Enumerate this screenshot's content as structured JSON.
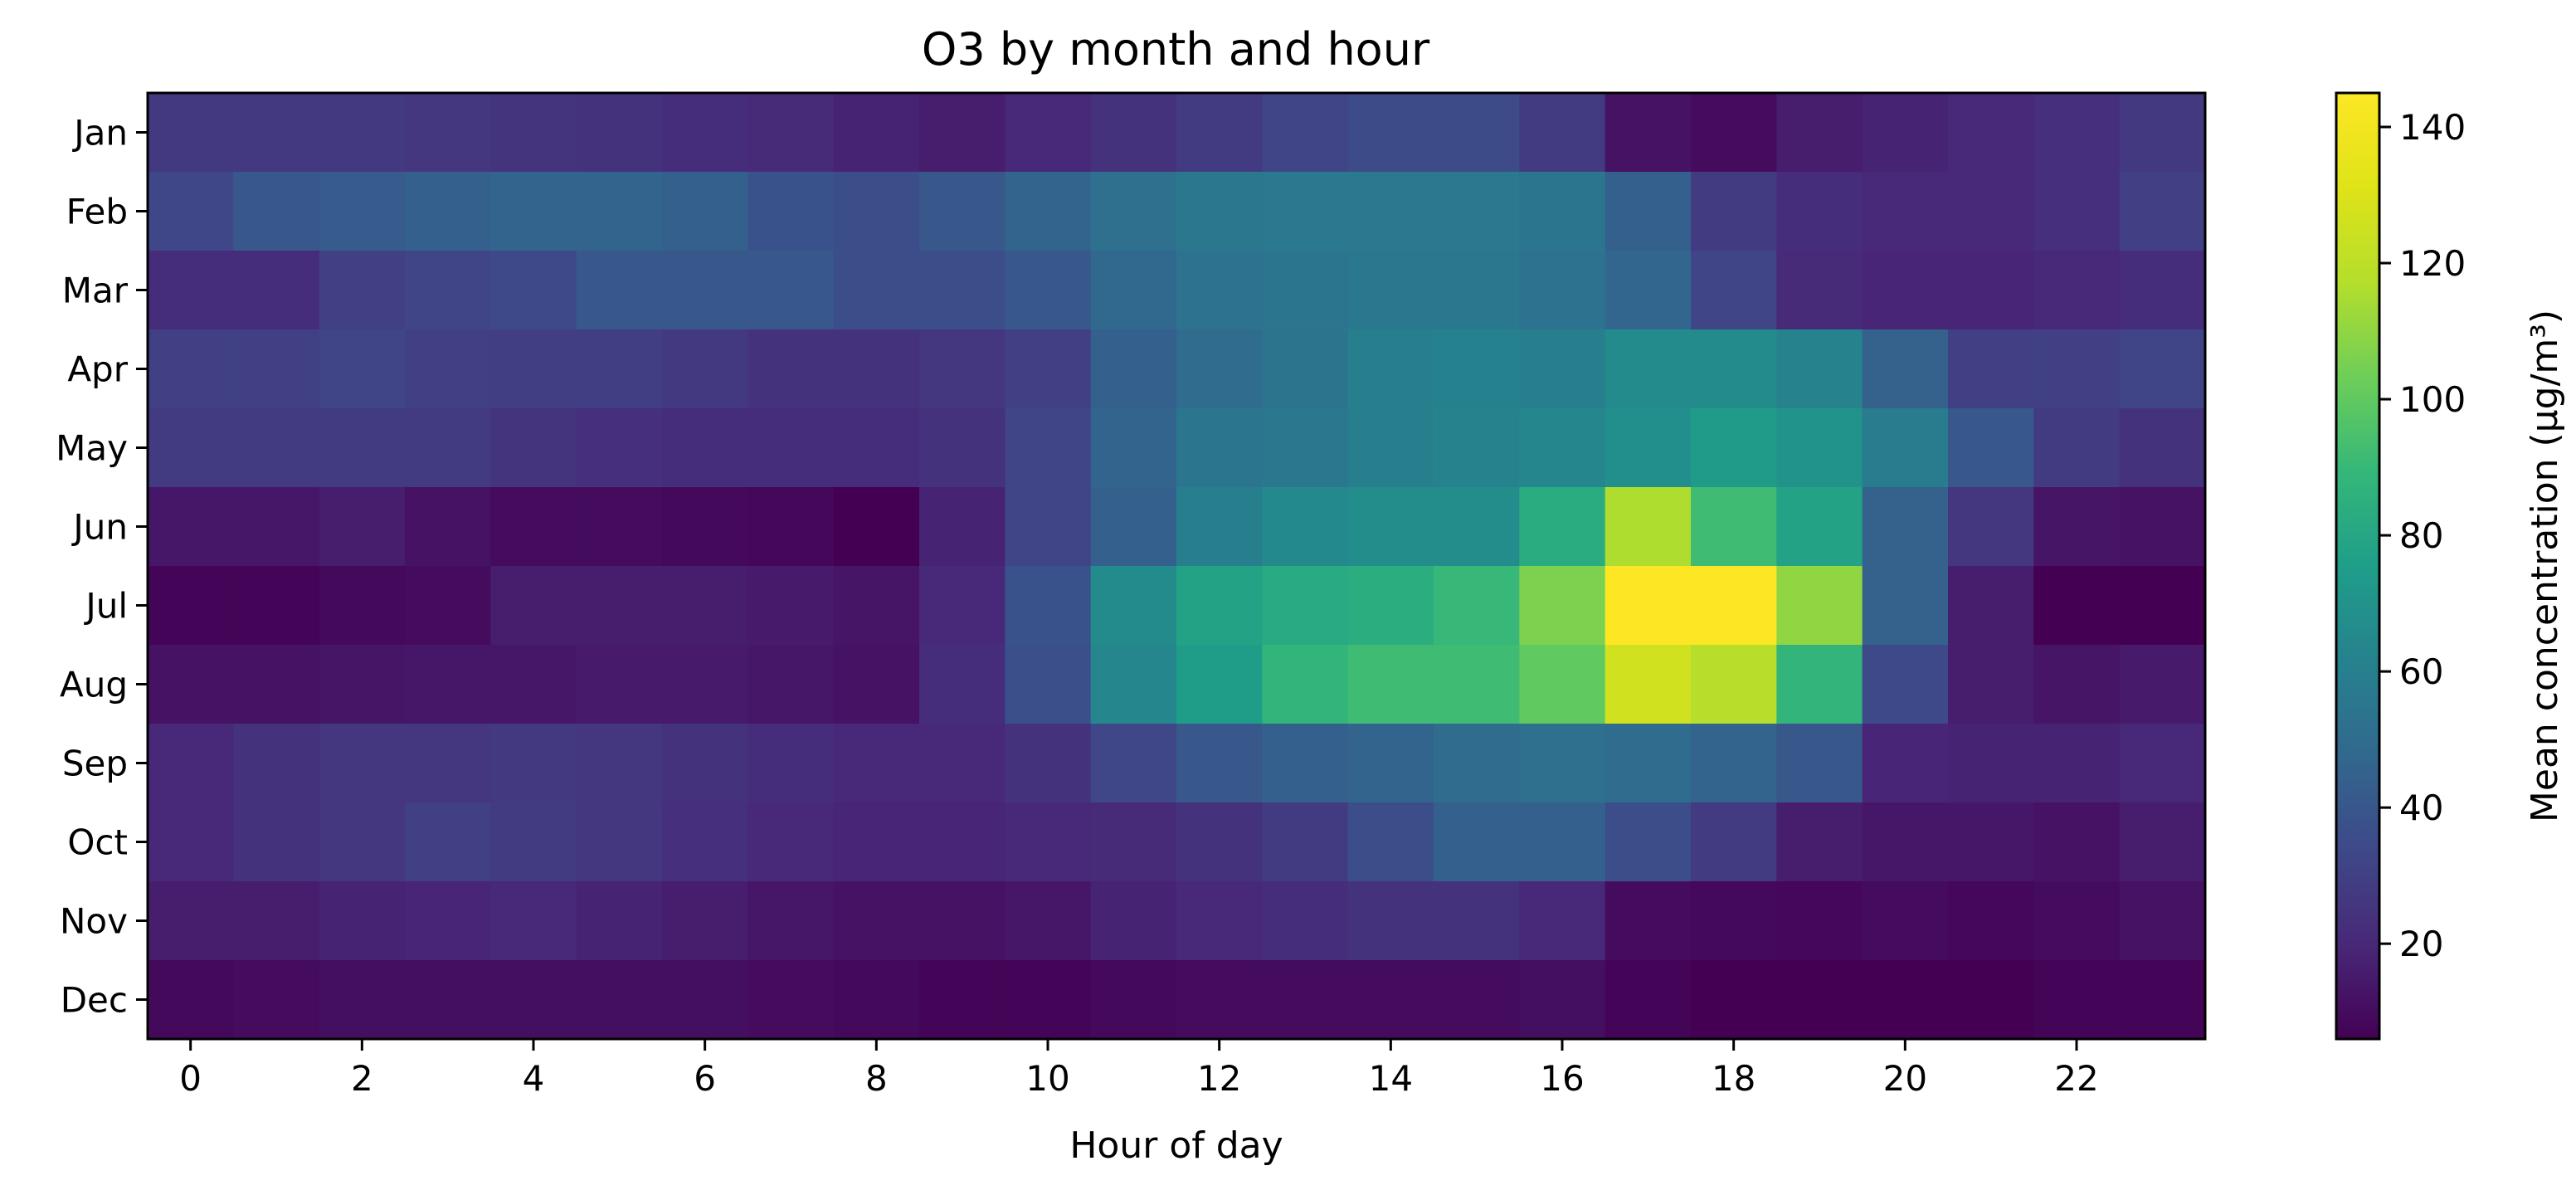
{
  "chart_data": {
    "type": "heatmap",
    "title": "O3 by month and hour",
    "xlabel": "Hour of day",
    "ylabel": "",
    "colorbar_label": "Mean concentration (µg/m³)",
    "colormap": "viridis",
    "x_categories": [
      0,
      1,
      2,
      3,
      4,
      5,
      6,
      7,
      8,
      9,
      10,
      11,
      12,
      13,
      14,
      15,
      16,
      17,
      18,
      19,
      20,
      21,
      22,
      23
    ],
    "x_tick_labels": [
      "0",
      "2",
      "4",
      "6",
      "8",
      "10",
      "12",
      "14",
      "16",
      "18",
      "20",
      "22"
    ],
    "y_categories": [
      "Jan",
      "Feb",
      "Mar",
      "Apr",
      "May",
      "Jun",
      "Jul",
      "Aug",
      "Sep",
      "Oct",
      "Nov",
      "Dec"
    ],
    "vmin": 6,
    "vmax": 145,
    "colorbar_ticks": [
      "20",
      "40",
      "60",
      "80",
      "100",
      "120",
      "140"
    ],
    "values": [
      [
        27,
        27,
        27,
        26,
        25,
        24,
        22,
        21,
        18,
        16,
        20,
        24,
        28,
        32,
        35,
        35,
        28,
        12,
        10,
        16,
        18,
        20,
        23,
        27
      ],
      [
        33,
        40,
        42,
        44,
        46,
        46,
        44,
        38,
        36,
        40,
        46,
        52,
        56,
        57,
        57,
        57,
        55,
        44,
        28,
        22,
        20,
        20,
        23,
        30
      ],
      [
        22,
        22,
        30,
        32,
        34,
        40,
        40,
        40,
        36,
        36,
        40,
        48,
        53,
        55,
        56,
        56,
        53,
        47,
        32,
        21,
        19,
        19,
        20,
        22
      ],
      [
        30,
        30,
        32,
        30,
        29,
        29,
        27,
        24,
        24,
        26,
        30,
        44,
        50,
        54,
        60,
        61,
        60,
        66,
        66,
        62,
        45,
        30,
        30,
        32
      ],
      [
        28,
        28,
        28,
        28,
        25,
        23,
        22,
        22,
        22,
        24,
        32,
        46,
        55,
        56,
        60,
        62,
        64,
        68,
        74,
        70,
        58,
        40,
        28,
        24
      ],
      [
        14,
        14,
        16,
        12,
        10,
        10,
        9,
        8,
        6,
        18,
        32,
        44,
        60,
        65,
        67,
        67,
        83,
        116,
        92,
        78,
        45,
        26,
        13,
        12
      ],
      [
        7,
        7,
        9,
        10,
        16,
        16,
        16,
        15,
        13,
        20,
        38,
        66,
        78,
        82,
        84,
        90,
        106,
        145,
        145,
        110,
        45,
        16,
        5,
        5
      ],
      [
        12,
        12,
        13,
        14,
        14,
        15,
        15,
        14,
        12,
        22,
        37,
        64,
        75,
        88,
        92,
        92,
        100,
        126,
        118,
        88,
        34,
        16,
        13,
        15
      ],
      [
        20,
        24,
        26,
        26,
        27,
        26,
        24,
        22,
        20,
        20,
        24,
        33,
        40,
        44,
        46,
        50,
        52,
        50,
        46,
        40,
        19,
        18,
        18,
        20
      ],
      [
        20,
        24,
        26,
        30,
        28,
        26,
        23,
        20,
        19,
        19,
        20,
        21,
        24,
        28,
        36,
        44,
        44,
        36,
        28,
        16,
        14,
        14,
        12,
        16
      ],
      [
        16,
        16,
        18,
        19,
        20,
        18,
        16,
        14,
        12,
        12,
        14,
        18,
        20,
        22,
        24,
        24,
        20,
        10,
        9,
        8,
        10,
        8,
        10,
        12
      ],
      [
        9,
        10,
        11,
        11,
        11,
        11,
        11,
        10,
        9,
        7,
        7,
        9,
        10,
        10,
        10,
        10,
        11,
        7,
        6,
        5,
        5,
        6,
        7,
        7
      ]
    ]
  }
}
